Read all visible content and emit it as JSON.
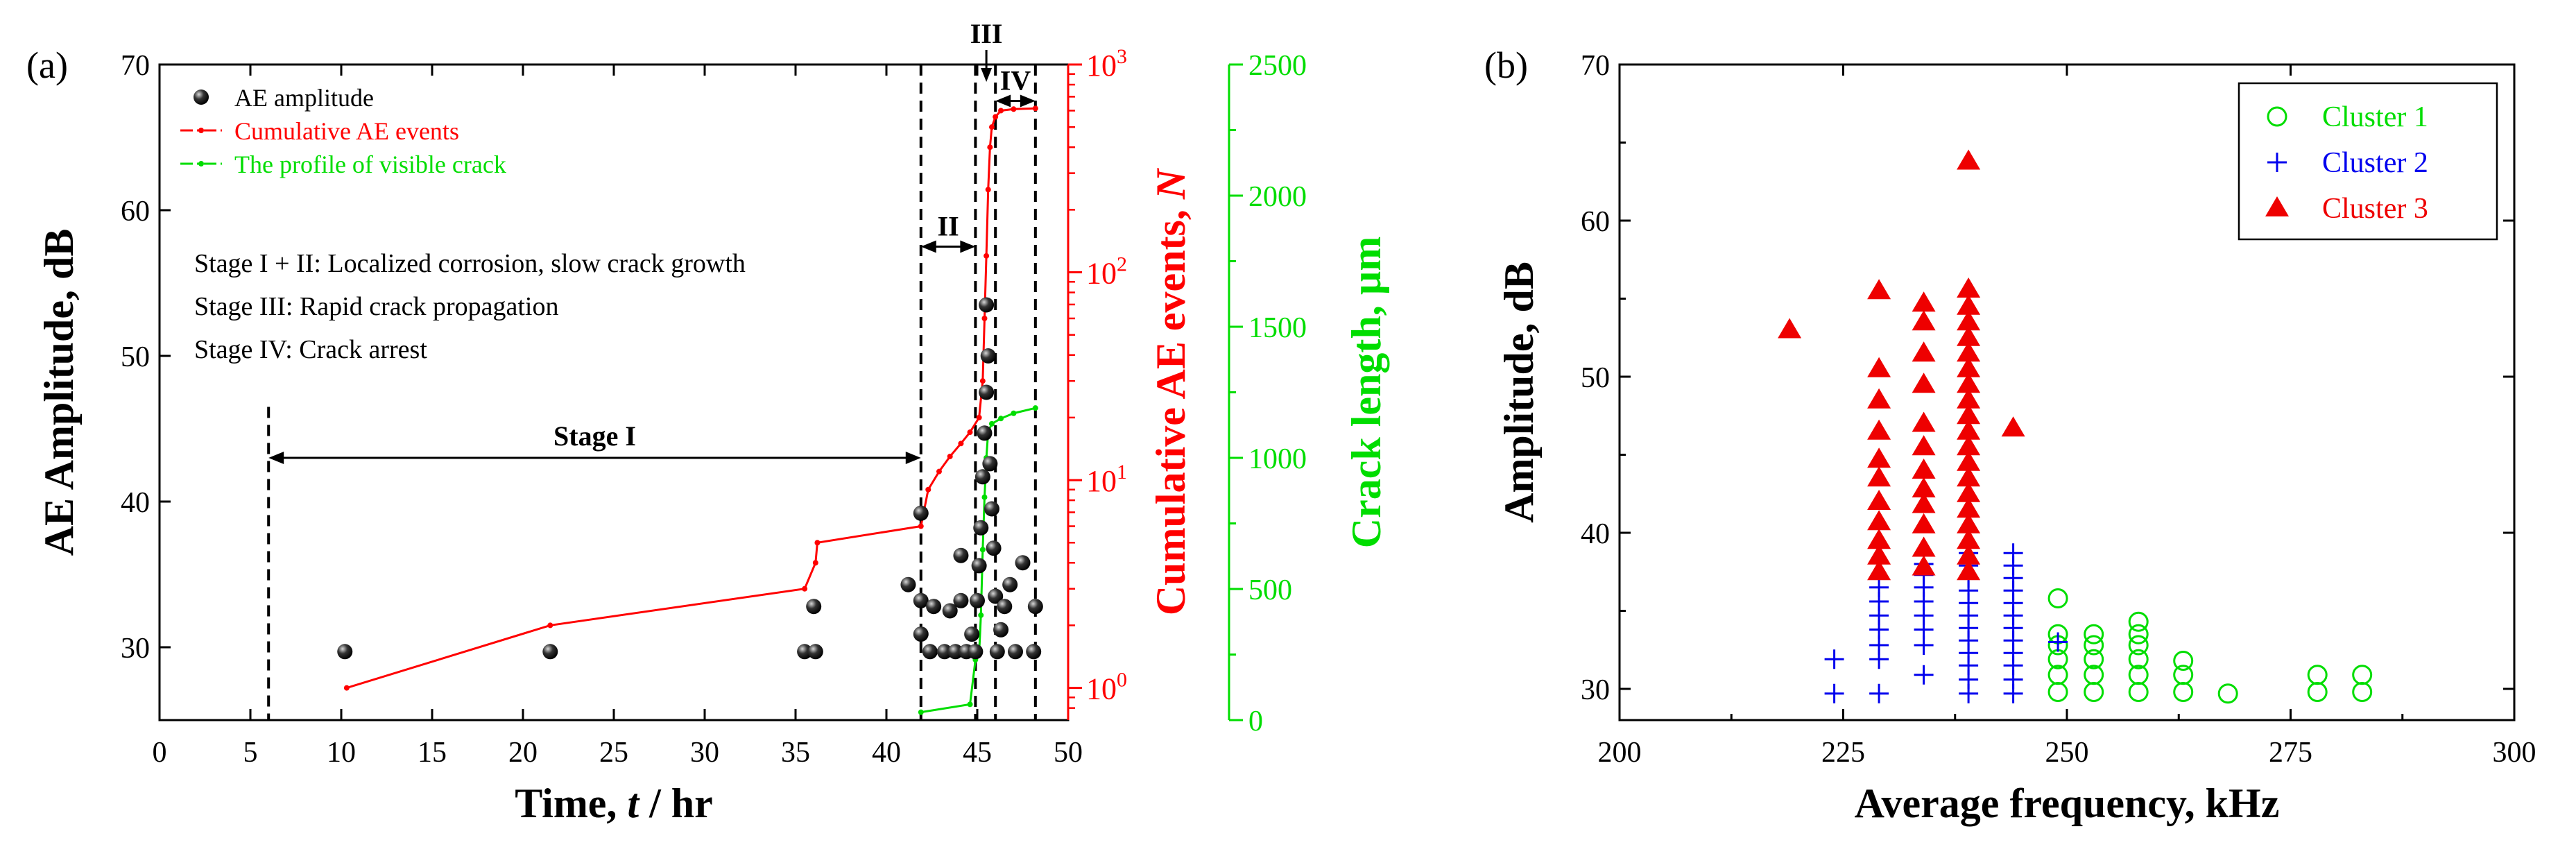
{
  "chart_data": [
    {
      "panel_label": "(a)",
      "type": "scatter",
      "xlabel": "Time, t / hr",
      "xlabel_parts": [
        "Time, ",
        "t",
        " / hr"
      ],
      "xlim": [
        0,
        50
      ],
      "x_ticks": [
        0,
        5,
        10,
        15,
        20,
        25,
        30,
        35,
        40,
        45,
        50
      ],
      "ylabel": "AE Amplitude, dB",
      "ylim": [
        25,
        70
      ],
      "y_ticks": [
        30,
        40,
        50,
        60,
        70
      ],
      "y2": {
        "label": "Cumulative AE events, N",
        "label_parts": [
          "Cumulative AE events, ",
          "N"
        ],
        "scale": "log",
        "lim": [
          0.7,
          1000
        ],
        "ticks": [
          1,
          10,
          100,
          1000
        ],
        "tick_labels": [
          "10^0",
          "10^1",
          "10^2",
          "10^3"
        ],
        "color": "#ff0000"
      },
      "y3": {
        "label": "Crack length, µm",
        "lim": [
          0,
          2500
        ],
        "ticks": [
          0,
          500,
          1000,
          1500,
          2000,
          2500
        ],
        "color": "#00dd00"
      },
      "legend": {
        "placement": "top-left",
        "entries": [
          "AE amplitude",
          "Cumulative AE events",
          "The profile of visible crack"
        ]
      },
      "series": [
        {
          "name": "AE amplitude",
          "axis": "y",
          "marker": "sphere",
          "color": "#000000",
          "points": [
            [
              10.2,
              29.7
            ],
            [
              21.5,
              29.7
            ],
            [
              35.5,
              29.7
            ],
            [
              36.1,
              29.7
            ],
            [
              36.0,
              32.8
            ],
            [
              41.2,
              34.3
            ],
            [
              41.9,
              39.2
            ],
            [
              41.9,
              33.2
            ],
            [
              41.9,
              30.9
            ],
            [
              42.4,
              29.7
            ],
            [
              42.6,
              32.8
            ],
            [
              43.2,
              29.7
            ],
            [
              43.8,
              29.7
            ],
            [
              43.5,
              32.5
            ],
            [
              44.1,
              33.2
            ],
            [
              44.1,
              36.3
            ],
            [
              44.4,
              29.7
            ],
            [
              44.7,
              30.9
            ],
            [
              44.9,
              29.7
            ],
            [
              45.0,
              33.2
            ],
            [
              45.1,
              35.6
            ],
            [
              45.2,
              38.2
            ],
            [
              45.3,
              41.7
            ],
            [
              45.4,
              44.7
            ],
            [
              45.5,
              47.5
            ],
            [
              45.6,
              50.0
            ],
            [
              45.5,
              53.5
            ],
            [
              45.7,
              42.6
            ],
            [
              45.8,
              39.5
            ],
            [
              45.9,
              36.8
            ],
            [
              46.0,
              33.5
            ],
            [
              46.1,
              29.7
            ],
            [
              46.3,
              31.2
            ],
            [
              46.5,
              32.8
            ],
            [
              46.8,
              34.3
            ],
            [
              47.1,
              29.7
            ],
            [
              47.5,
              35.8
            ],
            [
              48.1,
              29.7
            ],
            [
              48.2,
              32.8
            ]
          ]
        },
        {
          "name": "Cumulative AE events",
          "axis": "y2",
          "style": "line-with-dots",
          "color": "#ff0000",
          "points": [
            [
              10.3,
              1
            ],
            [
              21.5,
              2
            ],
            [
              35.5,
              3
            ],
            [
              36.1,
              4
            ],
            [
              36.2,
              5
            ],
            [
              41.9,
              6
            ],
            [
              42.3,
              9
            ],
            [
              42.9,
              11
            ],
            [
              43.5,
              13
            ],
            [
              44.1,
              15
            ],
            [
              44.6,
              17
            ],
            [
              45.1,
              20
            ],
            [
              45.3,
              30
            ],
            [
              45.4,
              60
            ],
            [
              45.5,
              120
            ],
            [
              45.6,
              250
            ],
            [
              45.7,
              400
            ],
            [
              45.8,
              500
            ],
            [
              46.0,
              560
            ],
            [
              46.3,
              600
            ],
            [
              47.0,
              610
            ],
            [
              48.2,
              615
            ]
          ]
        },
        {
          "name": "The profile of visible crack",
          "axis": "y3",
          "style": "line-with-dots",
          "color": "#00dd00",
          "points": [
            [
              41.9,
              30
            ],
            [
              44.6,
              60
            ],
            [
              44.9,
              230
            ],
            [
              45.1,
              250
            ],
            [
              45.2,
              400
            ],
            [
              45.3,
              650
            ],
            [
              45.4,
              850
            ],
            [
              45.5,
              1000
            ],
            [
              45.6,
              1100
            ],
            [
              45.8,
              1130
            ],
            [
              46.3,
              1150
            ],
            [
              47.0,
              1170
            ],
            [
              48.2,
              1190
            ]
          ]
        }
      ],
      "stage_lines_x": [
        6,
        41.9,
        44.9,
        46.0,
        48.2
      ],
      "annotations": [
        {
          "text": "Stage I",
          "from_x": 6,
          "to_x": 41.9,
          "y": 43
        },
        {
          "text": "II",
          "from_x": 41.9,
          "to_x": 44.9,
          "y": 57.5
        },
        {
          "text": "III",
          "x": 45.5,
          "y": 71.5
        },
        {
          "text": "IV",
          "from_x": 46.0,
          "to_x": 48.2,
          "y": 67.5
        }
      ],
      "notes": [
        "Stage I + II: Localized corrosion, slow crack growth",
        "Stage III: Rapid crack propagation",
        "Stage IV: Crack arrest"
      ]
    },
    {
      "panel_label": "(b)",
      "type": "scatter",
      "xlabel": "Average frequency, kHz",
      "xlim": [
        200,
        300
      ],
      "x_ticks": [
        200,
        225,
        250,
        275,
        300
      ],
      "ylabel": "Amplitude, dB",
      "ylim": [
        28,
        70
      ],
      "y_ticks": [
        30,
        40,
        50,
        60,
        70
      ],
      "legend": {
        "placement": "top-right",
        "entries": [
          "Cluster 1",
          "Cluster 2",
          "Cluster 3"
        ]
      },
      "series": [
        {
          "name": "Cluster 1",
          "marker": "circle-open",
          "color": "#00dd00",
          "points": [
            [
              249,
              29.8
            ],
            [
              249,
              30.9
            ],
            [
              249,
              31.9
            ],
            [
              249,
              32.8
            ],
            [
              249,
              33.5
            ],
            [
              249,
              35.8
            ],
            [
              253,
              29.8
            ],
            [
              253,
              30.9
            ],
            [
              253,
              31.9
            ],
            [
              253,
              32.8
            ],
            [
              253,
              33.5
            ],
            [
              258,
              29.8
            ],
            [
              258,
              30.9
            ],
            [
              258,
              31.9
            ],
            [
              258,
              32.8
            ],
            [
              258,
              33.5
            ],
            [
              258,
              34.3
            ],
            [
              263,
              29.8
            ],
            [
              263,
              30.9
            ],
            [
              263,
              31.8
            ],
            [
              268,
              29.7
            ],
            [
              278,
              29.8
            ],
            [
              278,
              30.9
            ],
            [
              283,
              29.8
            ],
            [
              283,
              30.9
            ]
          ]
        },
        {
          "name": "Cluster 2",
          "marker": "plus",
          "color": "#0000ee",
          "points": [
            [
              224,
              29.7
            ],
            [
              224,
              31.9
            ],
            [
              229,
              29.7
            ],
            [
              229,
              31.9
            ],
            [
              229,
              32.8
            ],
            [
              229,
              33.8
            ],
            [
              229,
              34.7
            ],
            [
              229,
              35.6
            ],
            [
              229,
              36.5
            ],
            [
              234,
              30.9
            ],
            [
              234,
              32.8
            ],
            [
              234,
              33.8
            ],
            [
              234,
              34.7
            ],
            [
              234,
              35.6
            ],
            [
              234,
              36.5
            ],
            [
              234,
              37.3
            ],
            [
              234,
              38.0
            ],
            [
              239,
              29.7
            ],
            [
              239,
              30.6
            ],
            [
              239,
              31.5
            ],
            [
              239,
              32.3
            ],
            [
              239,
              33.1
            ],
            [
              239,
              33.9
            ],
            [
              239,
              34.7
            ],
            [
              239,
              35.5
            ],
            [
              239,
              36.3
            ],
            [
              239,
              37.1
            ],
            [
              239,
              37.9
            ],
            [
              239,
              38.7
            ],
            [
              244,
              29.7
            ],
            [
              244,
              30.6
            ],
            [
              244,
              31.5
            ],
            [
              244,
              32.3
            ],
            [
              244,
              33.1
            ],
            [
              244,
              33.9
            ],
            [
              244,
              34.7
            ],
            [
              244,
              35.5
            ],
            [
              244,
              36.3
            ],
            [
              244,
              37.1
            ],
            [
              244,
              37.9
            ],
            [
              244,
              38.7
            ],
            [
              249,
              33.0
            ]
          ]
        },
        {
          "name": "Cluster 3",
          "marker": "triangle-filled",
          "color": "#ee0000",
          "points": [
            [
              219,
              53.0
            ],
            [
              229,
              37.5
            ],
            [
              229,
              38.5
            ],
            [
              229,
              39.5
            ],
            [
              229,
              40.7
            ],
            [
              229,
              42.0
            ],
            [
              229,
              43.5
            ],
            [
              229,
              44.7
            ],
            [
              229,
              46.5
            ],
            [
              229,
              48.5
            ],
            [
              229,
              50.5
            ],
            [
              229,
              55.5
            ],
            [
              234,
              37.8
            ],
            [
              234,
              39.0
            ],
            [
              234,
              40.5
            ],
            [
              234,
              41.8
            ],
            [
              234,
              42.8
            ],
            [
              234,
              44.0
            ],
            [
              234,
              45.5
            ],
            [
              234,
              47.0
            ],
            [
              234,
              49.5
            ],
            [
              234,
              51.5
            ],
            [
              234,
              53.5
            ],
            [
              234,
              54.7
            ],
            [
              239,
              37.5
            ],
            [
              239,
              38.5
            ],
            [
              239,
              39.5
            ],
            [
              239,
              40.5
            ],
            [
              239,
              41.5
            ],
            [
              239,
              42.5
            ],
            [
              239,
              43.5
            ],
            [
              239,
              44.5
            ],
            [
              239,
              45.5
            ],
            [
              239,
              46.5
            ],
            [
              239,
              47.5
            ],
            [
              239,
              48.5
            ],
            [
              239,
              49.5
            ],
            [
              239,
              50.5
            ],
            [
              239,
              51.5
            ],
            [
              239,
              52.5
            ],
            [
              239,
              53.5
            ],
            [
              239,
              54.5
            ],
            [
              239,
              55.6
            ],
            [
              239,
              63.8
            ],
            [
              244,
              46.7
            ]
          ]
        }
      ]
    }
  ]
}
